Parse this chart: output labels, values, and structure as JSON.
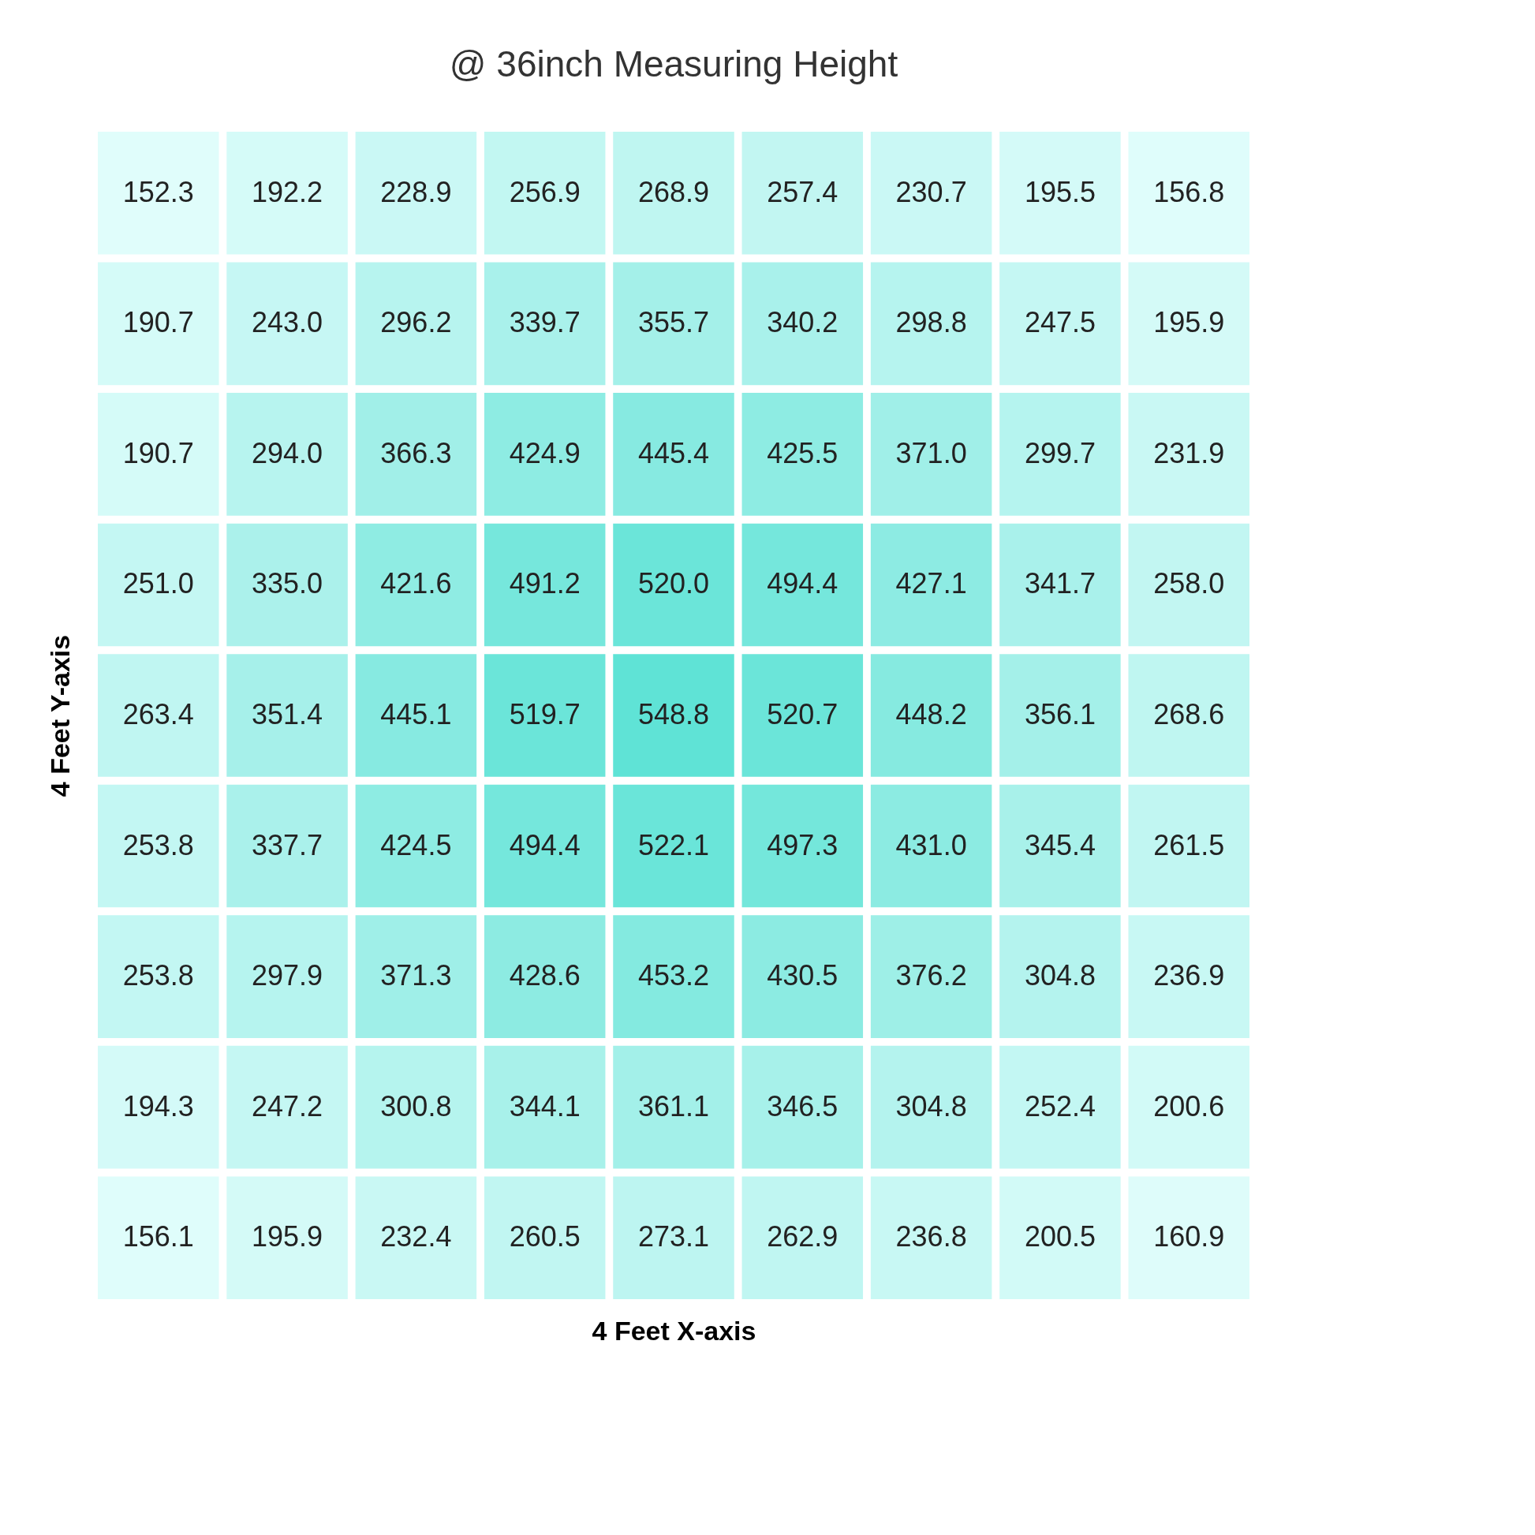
{
  "chart_data": {
    "type": "heatmap",
    "title": "@ 36inch Measuring Height",
    "xlabel": "4 Feet X-axis",
    "ylabel": "4 Feet Y-axis",
    "categories": [
      null,
      null,
      null,
      null,
      null,
      null,
      null,
      null,
      null
    ],
    "y_categories": [
      null,
      null,
      null,
      null,
      null,
      null,
      null,
      null,
      null
    ],
    "cells": [
      [
        152.3,
        192.2,
        228.9,
        256.9,
        268.9,
        257.4,
        230.7,
        195.5,
        156.8
      ],
      [
        190.7,
        243.0,
        296.2,
        339.7,
        355.7,
        340.2,
        298.8,
        247.5,
        195.9
      ],
      [
        190.7,
        294.0,
        366.3,
        424.9,
        445.4,
        425.5,
        371.0,
        299.7,
        231.9
      ],
      [
        251.0,
        335.0,
        421.6,
        491.2,
        520.0,
        494.4,
        427.1,
        341.7,
        258.0
      ],
      [
        263.4,
        351.4,
        445.1,
        519.7,
        548.8,
        520.7,
        448.2,
        356.1,
        268.6
      ],
      [
        253.8,
        337.7,
        424.5,
        494.4,
        522.1,
        497.3,
        431.0,
        345.4,
        261.5
      ],
      [
        253.8,
        297.9,
        371.3,
        428.6,
        453.2,
        430.5,
        376.2,
        304.8,
        236.9
      ],
      [
        194.3,
        247.2,
        300.8,
        344.1,
        361.1,
        346.5,
        304.8,
        252.4,
        200.6
      ],
      [
        156.1,
        195.9,
        232.4,
        260.5,
        273.1,
        262.9,
        236.8,
        200.5,
        160.9
      ]
    ],
    "cell_labels": [
      [
        "152.3",
        "192.2",
        "228.9",
        "256.9",
        "268.9",
        "257.4",
        "230.7",
        "195.5",
        "156.8"
      ],
      [
        "190.7",
        "243.0",
        "296.2",
        "339.7",
        "355.7",
        "340.2",
        "298.8",
        "247.5",
        "195.9"
      ],
      [
        "190.7",
        "294.0",
        "366.3",
        "424.9",
        "445.4",
        "425.5",
        "371.0",
        "299.7",
        "231.9"
      ],
      [
        "251.0",
        "335.0",
        "421.6",
        "491.2",
        "520.0",
        "494.4",
        "427.1",
        "341.7",
        "258.0"
      ],
      [
        "263.4",
        "351.4",
        "445.1",
        "519.7",
        "548.8",
        "520.7",
        "448.2",
        "356.1",
        "268.6"
      ],
      [
        "253.8",
        "337.7",
        "424.5",
        "494.4",
        "522.1",
        "497.3",
        "431.0",
        "345.4",
        "261.5"
      ],
      [
        "253.8",
        "297.9",
        "371.3",
        "428.6",
        "453.2",
        "430.5",
        "376.2",
        "304.8",
        "236.9"
      ],
      [
        "194.3",
        "247.2",
        "300.8",
        "344.1",
        "361.1",
        "346.5",
        "304.8",
        "252.4",
        "200.6"
      ],
      [
        "156.1",
        "195.9",
        "232.4",
        "260.5",
        "273.1",
        "262.9",
        "236.8",
        "200.5",
        "160.9"
      ]
    ],
    "colors": [
      "#e0fdfb",
      "#5fe3d6"
    ],
    "data_labels": true,
    "legend": false,
    "grid": false
  }
}
